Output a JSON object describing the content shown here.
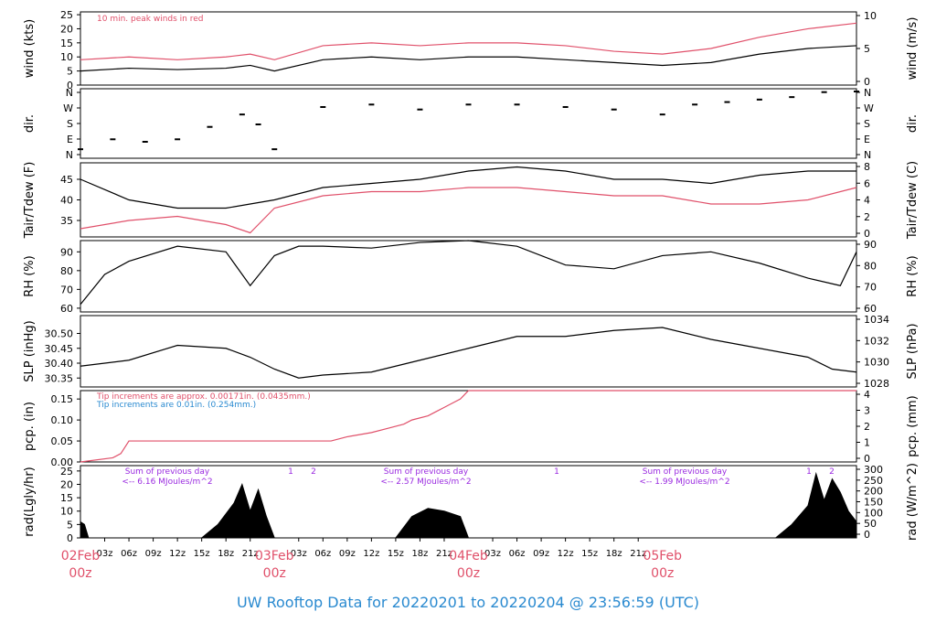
{
  "chart_data": [
    {
      "type": "line",
      "ylabel_left": "wind (kts)",
      "ylabel_right": "wind (m/s)",
      "ylim": [
        0,
        26
      ],
      "yticks": [
        "0",
        "5",
        "10",
        "15",
        "20",
        "25"
      ],
      "yticks_right": [
        "0",
        "5",
        "10"
      ],
      "annotation": "10 min. peak winds in red",
      "series": [
        {
          "color": "#000000",
          "x": [
            0,
            6,
            12,
            18,
            21,
            24,
            30,
            36,
            42,
            48,
            54,
            60,
            66,
            72,
            78,
            84,
            90,
            96
          ],
          "y": [
            5,
            6,
            5.5,
            6,
            7,
            5,
            9,
            10,
            9,
            10,
            10,
            9,
            8,
            7,
            8,
            11,
            13,
            14
          ]
        },
        {
          "color": "#e0506a",
          "x": [
            0,
            6,
            12,
            18,
            21,
            24,
            30,
            36,
            42,
            48,
            54,
            60,
            66,
            72,
            78,
            84,
            90,
            96
          ],
          "y": [
            9,
            10,
            9,
            10,
            11,
            9,
            14,
            15,
            14,
            15,
            15,
            14,
            12,
            11,
            13,
            17,
            20,
            22
          ]
        }
      ]
    },
    {
      "type": "scatter",
      "ylabel_left": "dir.",
      "ylabel_right": "dir.",
      "yticks": [
        "N",
        "E",
        "S",
        "W",
        "N"
      ],
      "yticks_right": [
        "N",
        "E",
        "S",
        "W",
        "N"
      ],
      "series": [
        {
          "color": "#000000",
          "x": [
            0,
            4,
            8,
            12,
            16,
            20,
            22,
            24,
            30,
            36,
            42,
            48,
            54,
            60,
            66,
            72,
            76,
            80,
            84,
            88,
            92,
            96
          ],
          "y": [
            80,
            100,
            95,
            100,
            125,
            150,
            130,
            80,
            165,
            170,
            160,
            170,
            170,
            165,
            160,
            150,
            170,
            175,
            180,
            185,
            195,
            200
          ]
        }
      ]
    },
    {
      "type": "line",
      "ylabel_left": "Tair/Tdew (F)",
      "ylabel_right": "Tair/Tdew (C)",
      "ylim": [
        31,
        49
      ],
      "yticks": [
        "35",
        "40",
        "45"
      ],
      "yticks_right": [
        "0",
        "2",
        "4",
        "6",
        "8"
      ],
      "series": [
        {
          "color": "#000000",
          "x": [
            0,
            6,
            12,
            18,
            21,
            24,
            30,
            36,
            42,
            48,
            54,
            60,
            66,
            72,
            78,
            84,
            90,
            96
          ],
          "y": [
            45,
            40,
            38,
            38,
            39,
            40,
            43,
            44,
            45,
            47,
            48,
            47,
            45,
            45,
            44,
            46,
            47,
            47
          ]
        },
        {
          "color": "#e0506a",
          "x": [
            0,
            6,
            12,
            18,
            21,
            24,
            30,
            36,
            42,
            48,
            54,
            60,
            66,
            72,
            78,
            84,
            90,
            96
          ],
          "y": [
            33,
            35,
            36,
            34,
            32,
            38,
            41,
            42,
            42,
            43,
            43,
            42,
            41,
            41,
            39,
            39,
            40,
            43
          ]
        }
      ]
    },
    {
      "type": "line",
      "ylabel_left": "RH (%)",
      "ylabel_right": "RH (%)",
      "ylim": [
        58,
        96
      ],
      "yticks": [
        "60",
        "70",
        "80",
        "90"
      ],
      "yticks_right": [
        "60",
        "70",
        "80",
        "90"
      ],
      "series": [
        {
          "color": "#000000",
          "x": [
            0,
            3,
            6,
            12,
            18,
            21,
            24,
            27,
            30,
            36,
            42,
            48,
            54,
            60,
            66,
            72,
            78,
            84,
            90,
            94,
            96
          ],
          "y": [
            62,
            78,
            85,
            93,
            90,
            72,
            88,
            93,
            93,
            92,
            95,
            96,
            93,
            83,
            81,
            88,
            90,
            84,
            76,
            72,
            90
          ]
        }
      ]
    },
    {
      "type": "line",
      "ylabel_left": "SLP (inHg)",
      "ylabel_right": "SLP (hPa)",
      "ylim": [
        30.32,
        30.56
      ],
      "yticks": [
        "30.35",
        "30.40",
        "30.45",
        "30.50"
      ],
      "yticks_right": [
        "1028",
        "1030",
        "1032",
        "1034"
      ],
      "series": [
        {
          "color": "#000000",
          "x": [
            0,
            6,
            12,
            18,
            21,
            24,
            27,
            30,
            36,
            42,
            48,
            54,
            60,
            66,
            72,
            78,
            84,
            90,
            93,
            96
          ],
          "y": [
            30.39,
            30.41,
            30.46,
            30.45,
            30.42,
            30.38,
            30.35,
            30.36,
            30.37,
            30.41,
            30.45,
            30.49,
            30.49,
            30.51,
            30.52,
            30.48,
            30.45,
            30.42,
            30.38,
            30.37
          ]
        }
      ]
    },
    {
      "type": "line",
      "ylabel_left": "pcp. (in)",
      "ylabel_right": "pcp. (mm)",
      "ylim": [
        0,
        0.17
      ],
      "yticks": [
        "0.00",
        "0.05",
        "0.10",
        "0.15"
      ],
      "yticks_right": [
        "0",
        "1",
        "2",
        "3",
        "4"
      ],
      "annotation_red": "Tip increments are approx. 0.00171in. (0.0435mm.)",
      "annotation_blue": "Tip increments are 0.01in. (0.254mm.)",
      "series": [
        {
          "color": "#e0506a",
          "x": [
            0,
            4,
            5,
            6,
            31,
            33,
            36,
            38,
            40,
            41,
            43,
            44,
            45,
            46,
            47,
            48,
            96
          ],
          "y": [
            0.0,
            0.01,
            0.02,
            0.05,
            0.05,
            0.06,
            0.07,
            0.08,
            0.09,
            0.1,
            0.11,
            0.12,
            0.13,
            0.14,
            0.15,
            0.17,
            0.17
          ]
        }
      ]
    },
    {
      "type": "area",
      "ylabel_left": "rad(Lgly/hr)",
      "ylabel_right": "rad (W/m^2)",
      "ylim": [
        0,
        27
      ],
      "yticks": [
        "0",
        "5",
        "10",
        "15",
        "20",
        "25"
      ],
      "yticks_right": [
        "0",
        "50",
        "100",
        "150",
        "200",
        "250",
        "300"
      ],
      "notes": [
        {
          "line1": "Sum of previous day",
          "line2": "<-- 6.16 MJoules/m^2"
        },
        {
          "line1": "Sum of previous day",
          "line2": "<-- 2.57 MJoules/m^2"
        },
        {
          "line1": "Sum of previous day",
          "line2": "<-- 1.99 MJoules/m^2"
        }
      ],
      "markers": [
        "1",
        "2",
        "1",
        "1",
        "2"
      ],
      "series": [
        {
          "color": "#000000",
          "x": [
            0,
            0.5,
            1,
            15,
            17,
            19,
            20,
            21,
            22,
            23,
            24,
            39,
            41,
            43,
            45,
            47,
            48,
            63,
            86,
            88,
            90,
            91,
            92,
            93,
            94,
            95,
            96
          ],
          "y": [
            6,
            5,
            0,
            0,
            5,
            13,
            20,
            10,
            18,
            8,
            0,
            0,
            8,
            11,
            10,
            8,
            0,
            0,
            0,
            5,
            12,
            24,
            14,
            22,
            17,
            10,
            6
          ]
        }
      ]
    }
  ],
  "time_axis": {
    "hours": [
      "03z",
      "06z",
      "09z",
      "12z",
      "15z",
      "18z",
      "21z",
      "03z",
      "06z",
      "09z",
      "12z",
      "15z",
      "18z",
      "21z",
      "03z",
      "06z",
      "09z",
      "12z",
      "15z",
      "18z",
      "21z"
    ],
    "dates": [
      {
        "date": "02Feb",
        "hour": "00z"
      },
      {
        "date": "03Feb",
        "hour": "00z"
      },
      {
        "date": "04Feb",
        "hour": "00z"
      },
      {
        "date": "05Feb",
        "hour": "00z"
      }
    ]
  },
  "footer": "UW Rooftop Data for 20220201  to  20220204 @ 23:56:59  (UTC)"
}
